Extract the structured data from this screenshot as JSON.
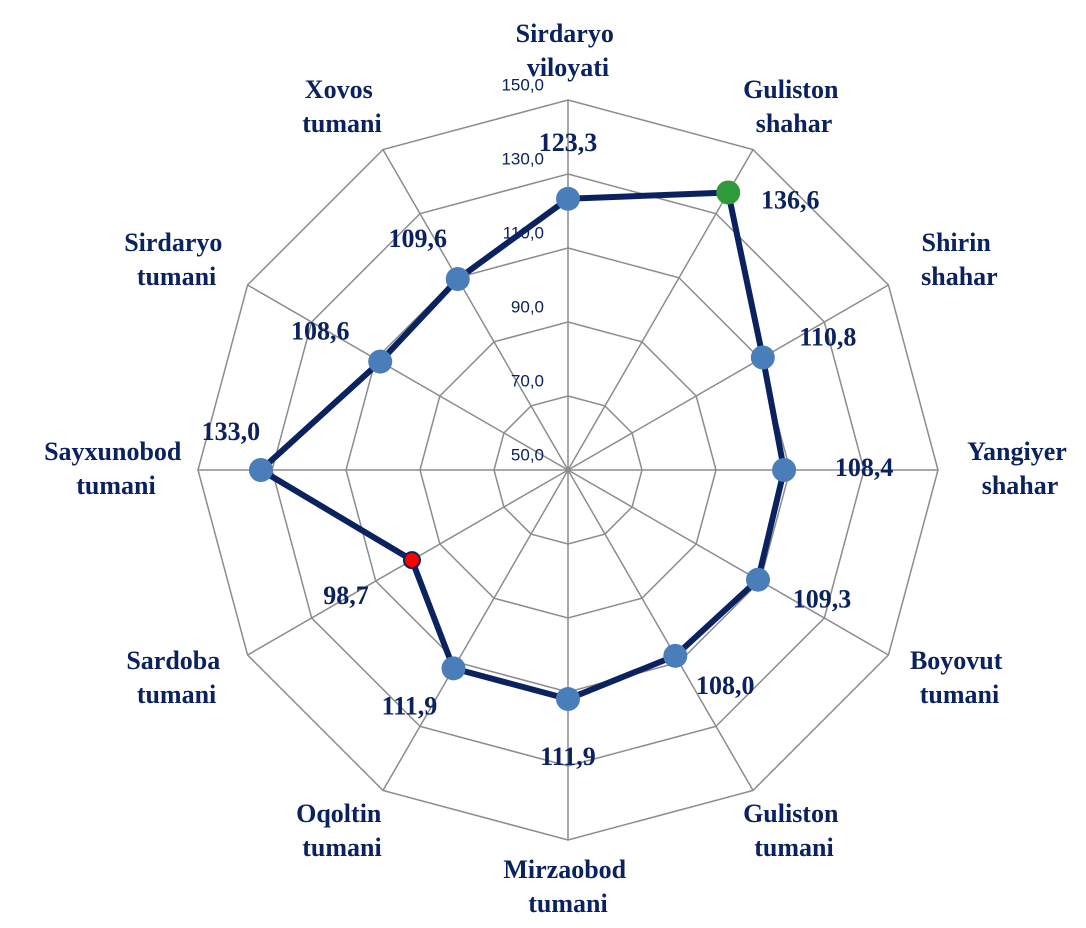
{
  "chart_data": {
    "type": "radar",
    "categories": [
      "Sirdaryo viloyati",
      "Guliston shahar",
      "Shirin shahar",
      "Yangiyer shahar",
      "Boyovut tumani",
      "Guliston tumani",
      "Mirzaobod tumani",
      "Oqoltin tumani",
      "Sardoba tumani",
      "Sayxunobod tumani",
      "Sirdaryo tumani",
      "Xovos tumani"
    ],
    "values": [
      123.3,
      136.6,
      110.8,
      108.4,
      109.3,
      108.0,
      111.9,
      111.9,
      98.7,
      133.0,
      108.6,
      109.6
    ],
    "value_labels": [
      "123,3",
      "136,6",
      "110,8",
      "108,4",
      "109,3",
      "108,0",
      "111,9",
      "111,9",
      "98,7",
      "133,0",
      "108,6",
      "109,6"
    ],
    "color": "#0b2260",
    "marker_colors": [
      "#4a7ebb",
      "#2e9a3a",
      "#4a7ebb",
      "#4a7ebb",
      "#4a7ebb",
      "#4a7ebb",
      "#4a7ebb",
      "#4a7ebb",
      "#ff0000",
      "#4a7ebb",
      "#4a7ebb",
      "#4a7ebb"
    ],
    "rlim": [
      50,
      150
    ],
    "rticks": [
      {
        "value": 50,
        "label": "50,0"
      },
      {
        "value": 70,
        "label": "70,0"
      },
      {
        "value": 90,
        "label": "90,0"
      },
      {
        "value": 110,
        "label": "110,0"
      },
      {
        "value": 130,
        "label": "130,0"
      },
      {
        "value": 150,
        "label": "150,0"
      }
    ],
    "grid": true
  }
}
